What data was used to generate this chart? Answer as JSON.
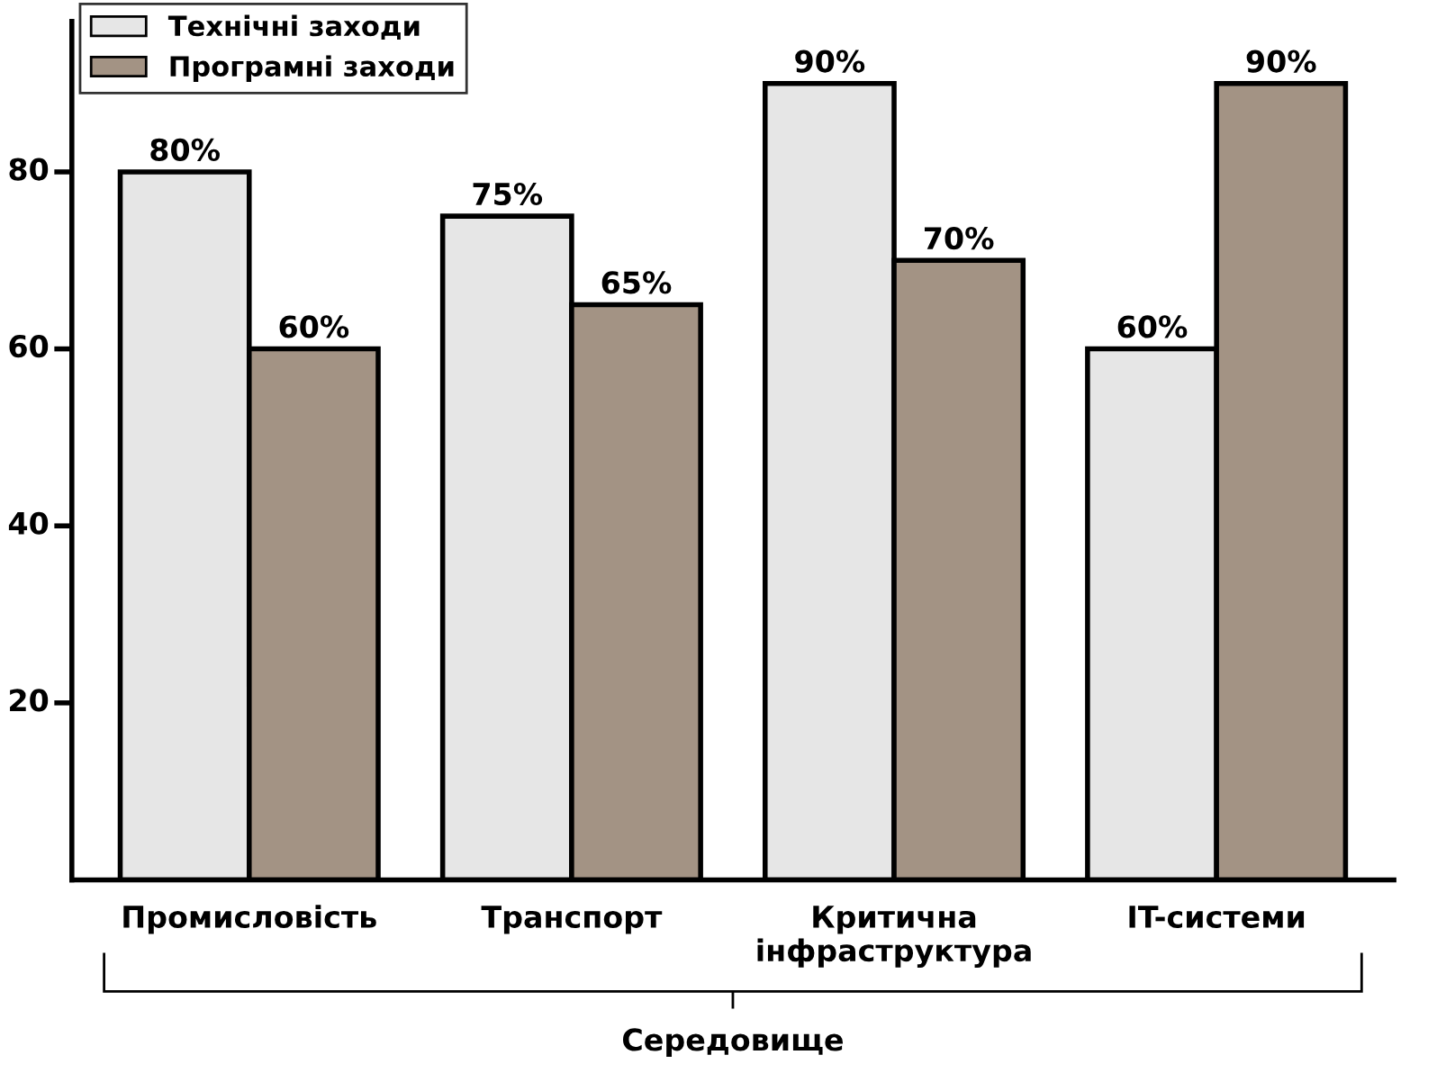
{
  "chart_data": {
    "type": "bar",
    "xlabel": "Середовище",
    "categories": [
      "Промисловість",
      "Транспорт",
      "Критична\nінфраструктура",
      "IT-системи"
    ],
    "series": [
      {
        "name": "Технічні заходи",
        "color": "#e6e6e6",
        "values": [
          80,
          75,
          90,
          60
        ],
        "value_labels": [
          "80%",
          "75%",
          "90%",
          "60%"
        ]
      },
      {
        "name": "Програмні заходи",
        "color": "#a39384",
        "values": [
          60,
          65,
          70,
          90
        ],
        "value_labels": [
          "60%",
          "65%",
          "70%",
          "90%"
        ]
      }
    ],
    "ylim": [
      0,
      97
    ],
    "yticks": [
      20,
      40,
      60,
      80
    ],
    "grid": false,
    "legend": "top left"
  }
}
